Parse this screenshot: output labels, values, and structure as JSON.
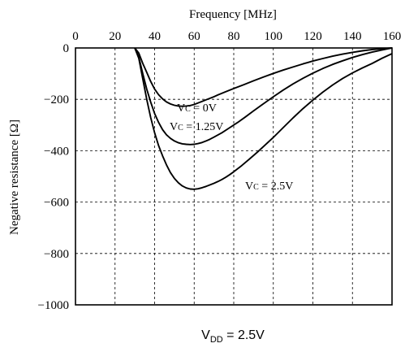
{
  "chart_data": {
    "type": "line",
    "title": "",
    "xlabel": "Frequency [MHz]",
    "ylabel": "Negative resistance [Ω]",
    "xlim": [
      0,
      160
    ],
    "ylim": [
      -1000,
      0
    ],
    "x_ticks": [
      0,
      20,
      40,
      60,
      80,
      100,
      120,
      140,
      160
    ],
    "x_tick_labels": [
      "0",
      "20",
      "40",
      "60",
      "80",
      "100",
      "120",
      "140",
      "160"
    ],
    "y_ticks": [
      0,
      -200,
      -400,
      -600,
      -800,
      -1000
    ],
    "y_tick_labels": [
      "0",
      "−200",
      "−400",
      "−600",
      "−800",
      "−1000"
    ],
    "x_axis_position": "top",
    "grid": true,
    "grid_style": "dashed",
    "series": [
      {
        "name": "VC = 0V",
        "label_main": "V",
        "label_sub": "C",
        "label_rest": " = 0V",
        "x": [
          30,
          32,
          34,
          36,
          38,
          40,
          42,
          44,
          46,
          48,
          50,
          52,
          54,
          56,
          58,
          60,
          62,
          64,
          66,
          68,
          70,
          72,
          76,
          80,
          85,
          90,
          95,
          100,
          105,
          110,
          115,
          120,
          125,
          130,
          135,
          140,
          145,
          150,
          155,
          160
        ],
        "y": [
          0,
          -20,
          -60,
          -95,
          -130,
          -160,
          -182,
          -198,
          -210,
          -218,
          -223,
          -226,
          -227,
          -226,
          -224,
          -220,
          -214,
          -208,
          -202,
          -196,
          -190,
          -183,
          -170,
          -158,
          -143,
          -128,
          -113,
          -99,
          -86,
          -74,
          -62,
          -51,
          -41,
          -32,
          -24,
          -17,
          -11,
          -6,
          -3,
          0
        ]
      },
      {
        "name": "VC = 1.25V",
        "label_main": "V",
        "label_sub": "C",
        "label_rest": " = 1.25V",
        "x": [
          30,
          32,
          34,
          36,
          38,
          40,
          42,
          44,
          46,
          48,
          50,
          52,
          54,
          56,
          58,
          60,
          62,
          64,
          66,
          68,
          70,
          74,
          78,
          82,
          86,
          90,
          95,
          100,
          105,
          110,
          115,
          120,
          125,
          130,
          135,
          140,
          145,
          150,
          155,
          160
        ],
        "y": [
          0,
          -35,
          -100,
          -160,
          -210,
          -255,
          -290,
          -318,
          -338,
          -352,
          -362,
          -369,
          -373,
          -375,
          -376,
          -375,
          -372,
          -368,
          -362,
          -355,
          -347,
          -330,
          -310,
          -290,
          -268,
          -245,
          -217,
          -190,
          -164,
          -140,
          -118,
          -98,
          -80,
          -64,
          -50,
          -37,
          -26,
          -16,
          -8,
          0
        ]
      },
      {
        "name": "VC = 2.5V",
        "label_main": "V",
        "label_sub": "C",
        "label_rest": " = 2.5V",
        "x": [
          30,
          32,
          34,
          36,
          38,
          40,
          42,
          44,
          46,
          48,
          50,
          52,
          54,
          56,
          58,
          60,
          62,
          64,
          66,
          68,
          70,
          72,
          74,
          76,
          78,
          80,
          84,
          88,
          92,
          96,
          100,
          105,
          110,
          115,
          120,
          125,
          130,
          135,
          140,
          145,
          150,
          155,
          160
        ],
        "y": [
          0,
          -40,
          -120,
          -200,
          -270,
          -330,
          -380,
          -420,
          -455,
          -485,
          -508,
          -525,
          -537,
          -545,
          -549,
          -550,
          -548,
          -544,
          -539,
          -533,
          -527,
          -520,
          -512,
          -503,
          -493,
          -482,
          -458,
          -432,
          -405,
          -377,
          -348,
          -310,
          -272,
          -236,
          -203,
          -172,
          -144,
          -119,
          -97,
          -78,
          -60,
          -40,
          -22
        ]
      }
    ]
  },
  "annotation": {
    "main": "V",
    "sub": "DD",
    "rest": " = 2.5V"
  }
}
